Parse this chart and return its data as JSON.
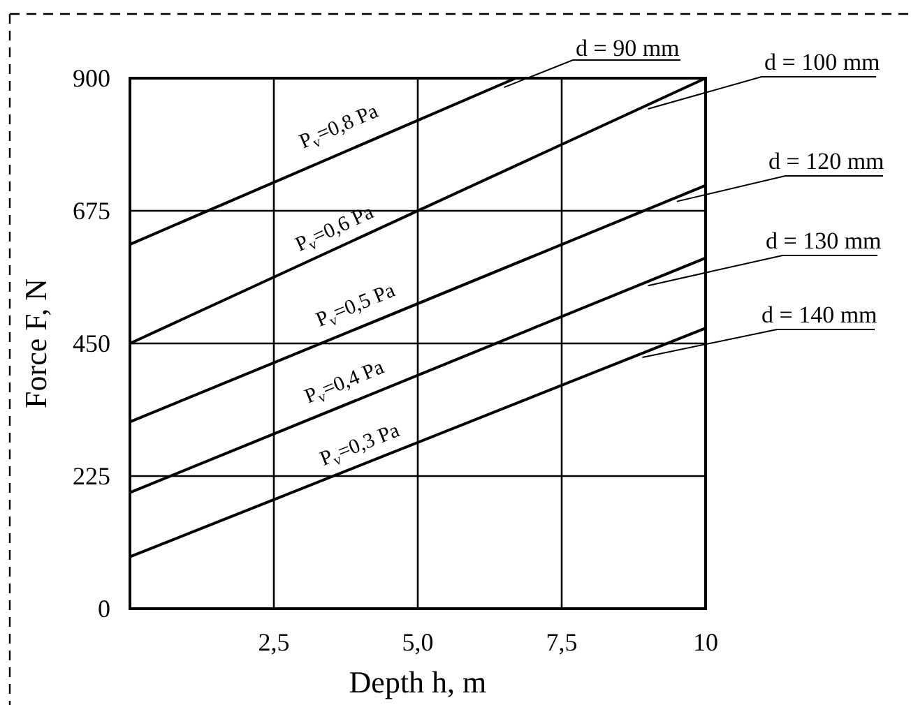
{
  "chart_data": {
    "type": "line",
    "xlabel": "Depth h, m",
    "ylabel": "Force F, N",
    "xlim": [
      0,
      10
    ],
    "ylim": [
      0,
      900
    ],
    "xticks": [
      {
        "value": 2.5,
        "label": "2,5"
      },
      {
        "value": 5,
        "label": "5,0"
      },
      {
        "value": 7.5,
        "label": "7,5"
      },
      10
    ],
    "yticks": [
      0,
      225,
      450,
      675,
      900
    ],
    "grid": true,
    "line_style": "solid",
    "marker": "none",
    "series": [
      {
        "name": "d = 90 mm",
        "color": "#000000",
        "x": [
          0,
          6.7
        ],
        "values": [
          618,
          900
        ]
      },
      {
        "name": "d = 100 mm",
        "color": "#000000",
        "x": [
          0,
          10
        ],
        "values": [
          450,
          900
        ]
      },
      {
        "name": "d = 120 mm",
        "color": "#000000",
        "x": [
          0,
          10
        ],
        "values": [
          317,
          718
        ]
      },
      {
        "name": "d = 130 mm",
        "color": "#000000",
        "x": [
          0,
          10
        ],
        "values": [
          197,
          595
        ]
      },
      {
        "name": "d = 140 mm",
        "color": "#000000",
        "x": [
          0,
          10
        ],
        "values": [
          88,
          476
        ]
      }
    ],
    "annotations": [
      "P$_{v}$=0,8 Pa",
      "P$_{v}$=0,6 Pa",
      "P$_{v}$=0,5 Pa",
      "P$_{v}$=0,4 Pa",
      "P$_{v}$=0,3 Pa"
    ]
  }
}
